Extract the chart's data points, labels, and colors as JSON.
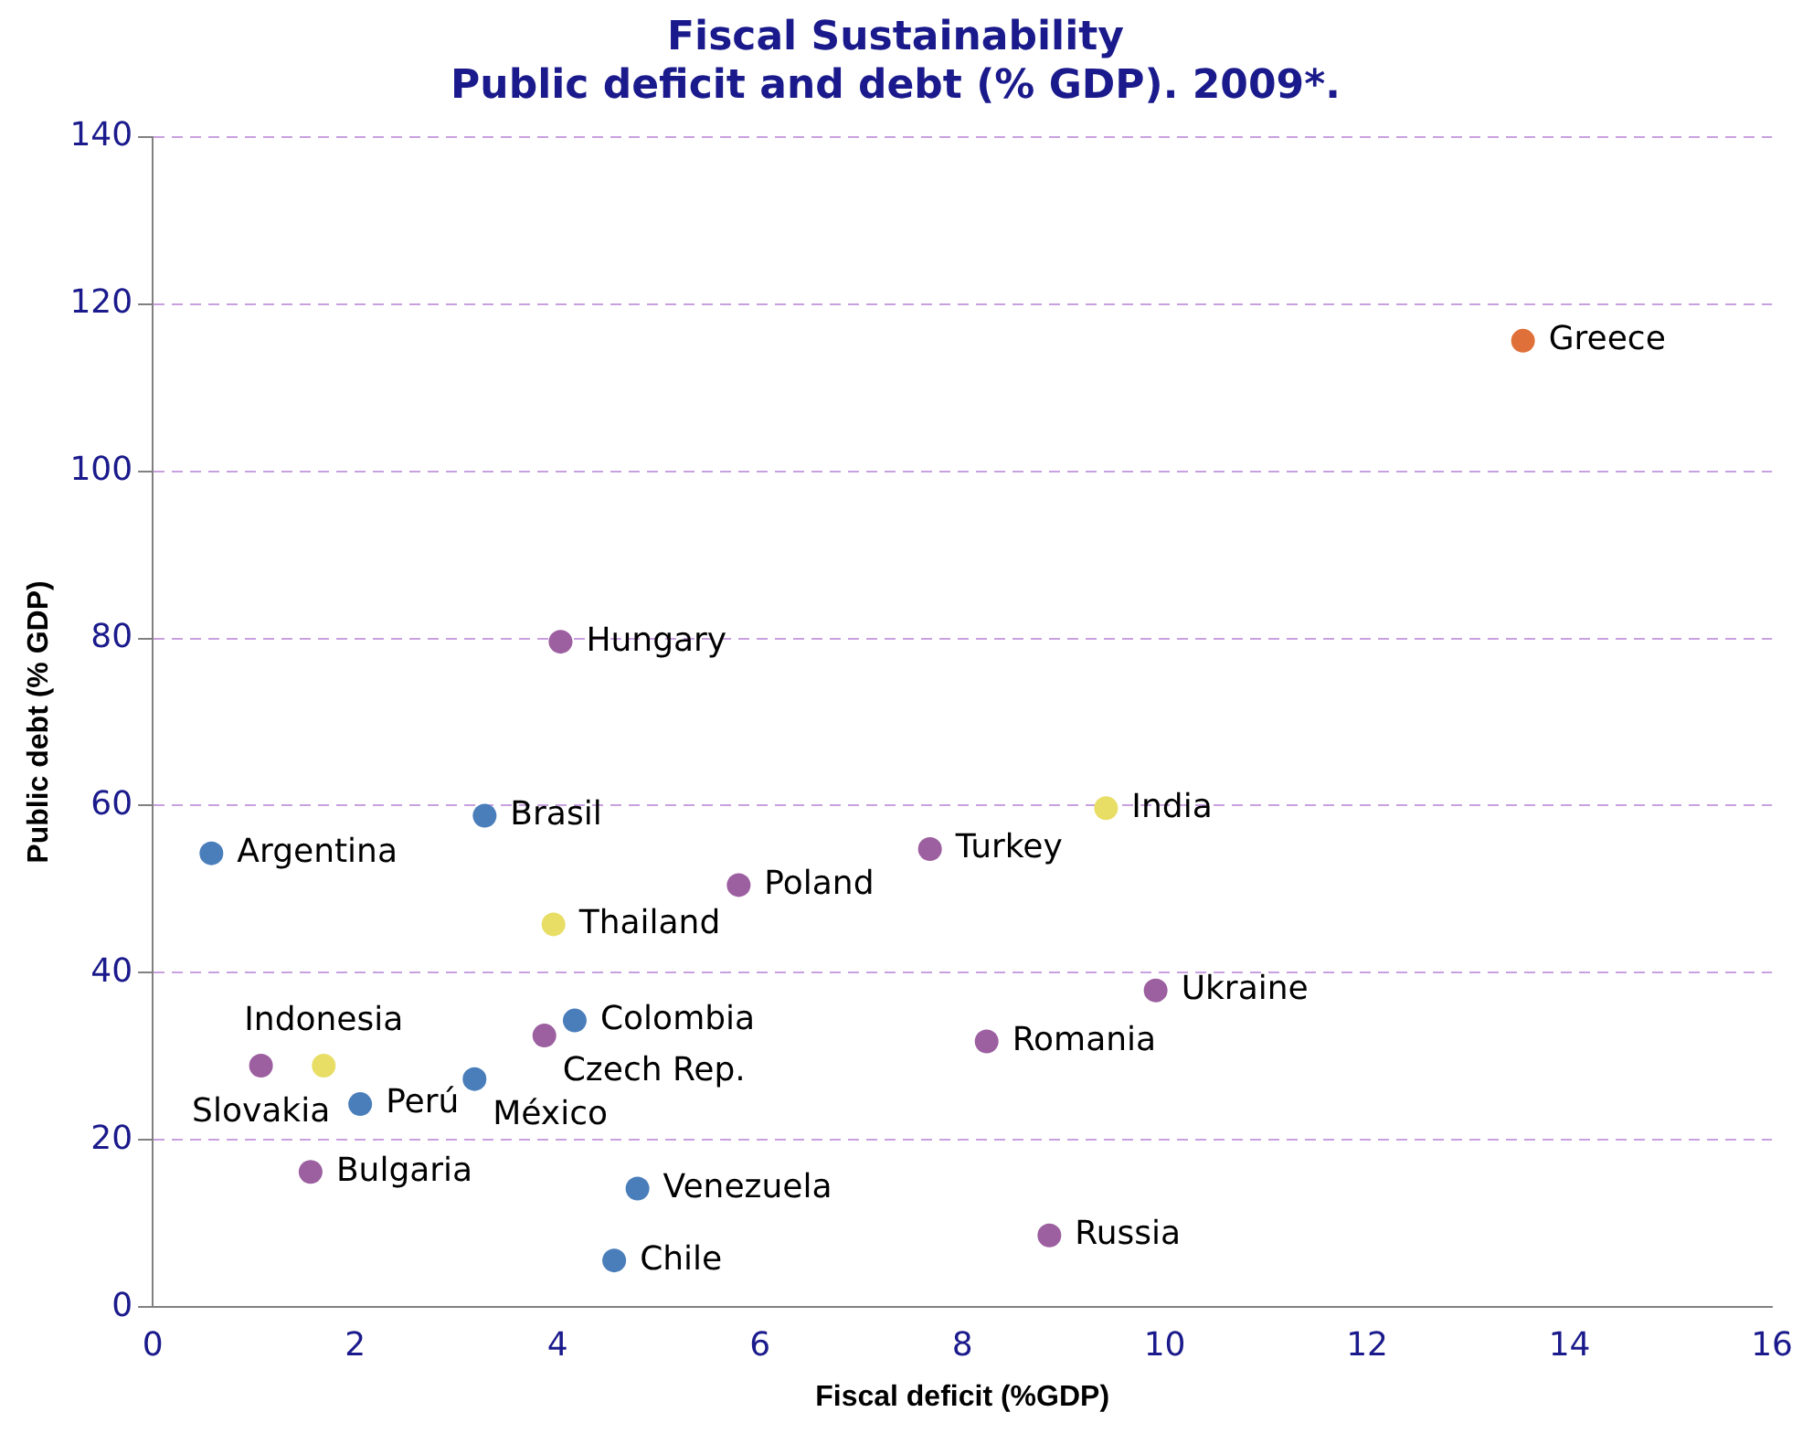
{
  "chart_data": {
    "type": "scatter",
    "title": "Fiscal Sustainability\nPublic deficit and debt (% GDP). 2009*.",
    "xlabel": "Fiscal deficit (%GDP)",
    "ylabel": "Public debt (% GDP)",
    "series": [
      {
        "x": [
          13.54,
          4.03,
          3.28,
          0.58,
          3.96,
          5.79,
          7.68,
          9.42,
          9.91,
          8.24,
          3.87,
          4.17,
          1.69,
          1.07,
          3.18,
          2.05,
          1.56,
          4.79,
          4.56,
          8.86
        ],
        "values": [
          115.6,
          79.6,
          58.8,
          54.3,
          45.8,
          50.5,
          54.8,
          59.7,
          37.9,
          31.8,
          32.5,
          34.3,
          28.9,
          28.9,
          27.3,
          24.3,
          16.2,
          14.2,
          5.6,
          8.6
        ],
        "colors": [
          "#e0703a",
          "#9c5fa0",
          "#4a7ebb",
          "#4a7ebb",
          "#e8de66",
          "#9c5fa0",
          "#9c5fa0",
          "#e8de66",
          "#9c5fa0",
          "#9c5fa0",
          "#9c5fa0",
          "#4a7ebb",
          "#e8de66",
          "#9c5fa0",
          "#4a7ebb",
          "#4a7ebb",
          "#9c5fa0",
          "#4a7ebb",
          "#4a7ebb",
          "#9c5fa0"
        ]
      }
    ],
    "annotations": [
      {
        "text": "Greece",
        "x": 13.54,
        "y": 115.6
      },
      {
        "text": "Hungary",
        "x": 4.03,
        "y": 79.6
      },
      {
        "text": "Brasil",
        "x": 3.28,
        "y": 58.8
      },
      {
        "text": "Argentina",
        "x": 0.58,
        "y": 54.3
      },
      {
        "text": "Thailand",
        "x": 3.96,
        "y": 45.8
      },
      {
        "text": "Poland",
        "x": 5.79,
        "y": 50.5
      },
      {
        "text": "Turkey",
        "x": 7.68,
        "y": 54.8
      },
      {
        "text": "India",
        "x": 9.42,
        "y": 59.7
      },
      {
        "text": "Ukraine",
        "x": 9.91,
        "y": 37.9
      },
      {
        "text": "Romania",
        "x": 8.24,
        "y": 31.8
      },
      {
        "text": "Czech Rep.",
        "x": 3.87,
        "y": 32.5
      },
      {
        "text": "Colombia",
        "x": 4.17,
        "y": 34.3
      },
      {
        "text": "Indonesia",
        "x": 1.69,
        "y": 28.9
      },
      {
        "text": "Slovakia",
        "x": 1.07,
        "y": 28.9
      },
      {
        "text": "México",
        "x": 3.18,
        "y": 27.3
      },
      {
        "text": "Perú",
        "x": 2.05,
        "y": 24.3
      },
      {
        "text": "Bulgaria",
        "x": 1.56,
        "y": 16.2
      },
      {
        "text": "Venezuela",
        "x": 4.79,
        "y": 14.2
      },
      {
        "text": "Chile",
        "x": 4.56,
        "y": 5.6
      },
      {
        "text": "Russia",
        "x": 8.86,
        "y": 8.6
      }
    ],
    "xlim": [
      0,
      16
    ],
    "xticks": [
      0,
      2,
      4,
      6,
      8,
      10,
      12,
      14,
      16
    ],
    "ylim": [
      0,
      140
    ],
    "yticks": [
      0,
      20,
      40,
      60,
      80,
      100,
      120,
      140
    ],
    "grid": "y",
    "marker": "circle"
  }
}
